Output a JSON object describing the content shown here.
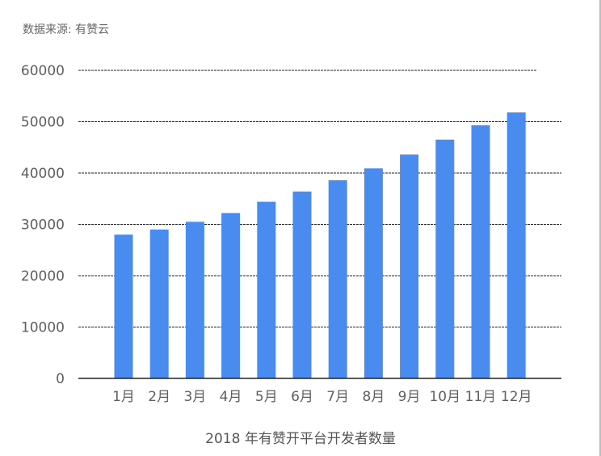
{
  "source_label": "数据来源: 有赞云",
  "chart_data": {
    "type": "bar",
    "title": "",
    "xlabel": "2018 年有赞开平台开发者数量",
    "ylabel": "",
    "categories": [
      "1月",
      "2月",
      "3月",
      "4月",
      "5月",
      "6月",
      "7月",
      "8月",
      "9月",
      "10月",
      "11月",
      "12月"
    ],
    "series": [
      {
        "values": [
          28000,
          29000,
          30500,
          32200,
          34400,
          36400,
          38600,
          40900,
          43600,
          46500,
          49300,
          51800
        ]
      }
    ],
    "ylim": [
      0,
      60000
    ],
    "yticks": [
      0,
      10000,
      20000,
      30000,
      40000,
      50000,
      60000
    ],
    "grid": true,
    "legend": "none",
    "colors": {
      "bar": "#4a8bf0",
      "grid": "#222222",
      "axis": "#222222"
    }
  }
}
